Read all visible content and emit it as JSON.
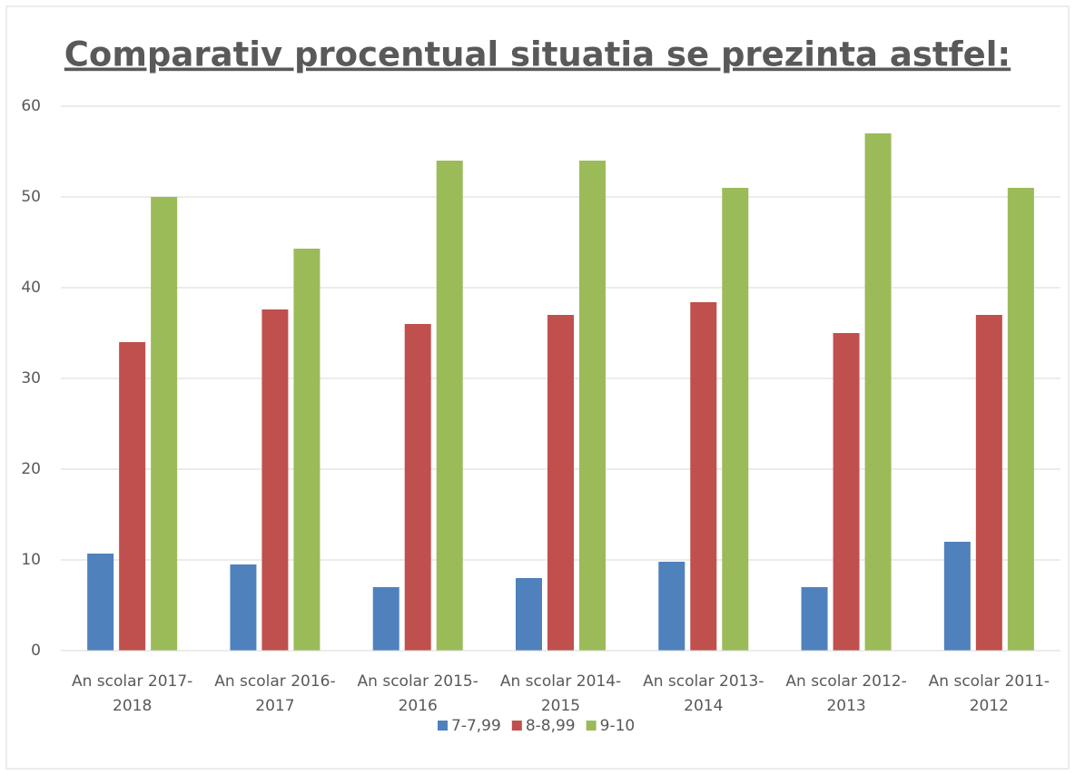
{
  "chart_data": {
    "type": "bar",
    "title": "Comparativ procentual situatia se prezinta astfel:",
    "categories": [
      "An scolar 2017-2018",
      "An scolar 2016-2017",
      "An scolar 2015-2016",
      "An scolar 2014-2015",
      "An scolar 2013-2014",
      "An scolar 2012-2013",
      "An scolar 2011-2012"
    ],
    "series": [
      {
        "name": "7-7,99",
        "color": "#4f81bd",
        "values": [
          10.7,
          9.5,
          7,
          8,
          9.8,
          7,
          12
        ]
      },
      {
        "name": "8-8,99",
        "color": "#c0504d",
        "values": [
          34,
          37.6,
          36,
          37,
          38.4,
          35,
          37
        ]
      },
      {
        "name": "9-10",
        "color": "#9bbb59",
        "values": [
          50,
          44.3,
          54,
          54,
          51,
          57,
          51
        ]
      }
    ],
    "ylim": [
      0,
      60
    ],
    "yticks": [
      0,
      10,
      20,
      30,
      40,
      50,
      60
    ],
    "grid": true,
    "legend": "bottom"
  }
}
